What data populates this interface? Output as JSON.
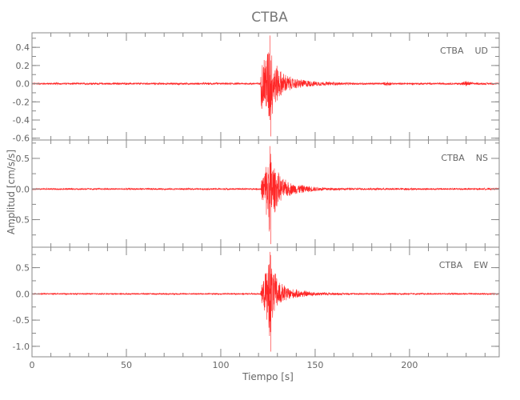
{
  "chart_data": {
    "type": "line",
    "title": "CTBA",
    "xlabel": "Tiempo [s]",
    "ylabel": "Amplitud [cm/s/s]",
    "xlim": [
      0,
      247.5
    ],
    "x_ticks": [
      "0",
      "50",
      "100",
      "150",
      "200"
    ],
    "x_tick_values": [
      0,
      50,
      100,
      150,
      200
    ],
    "line_color": "#ff0000",
    "axis_color": "#888888",
    "grid": false,
    "panels": [
      {
        "label": "CTBA    UD",
        "ylim": [
          -0.62,
          0.56
        ],
        "y_ticks": [
          "0.4",
          "0.2",
          "0.0",
          "-0.2",
          "-0.4",
          "-0.6"
        ],
        "y_tick_values": [
          0.4,
          0.2,
          0.0,
          -0.2,
          -0.4,
          -0.6
        ],
        "envelope": [
          [
            0,
            0.012
          ],
          [
            121,
            0.012
          ],
          [
            121.5,
            0.3
          ],
          [
            124,
            0.4
          ],
          [
            126,
            0.55
          ],
          [
            128,
            0.3
          ],
          [
            132,
            0.15
          ],
          [
            138,
            0.07
          ],
          [
            150,
            0.03
          ],
          [
            165,
            0.015
          ],
          [
            186,
            0.012
          ],
          [
            188,
            0.03
          ],
          [
            191,
            0.012
          ],
          [
            227,
            0.012
          ],
          [
            230,
            0.035
          ],
          [
            234,
            0.012
          ],
          [
            247.5,
            0.012
          ]
        ],
        "peak_max": 0.53,
        "peak_min": -0.58
      },
      {
        "label": "CTBA    NS",
        "ylim": [
          -0.95,
          0.8
        ],
        "y_ticks": [
          "0.5",
          "0.0",
          "-0.5"
        ],
        "y_tick_values": [
          0.5,
          0.0,
          -0.5
        ],
        "envelope": [
          [
            0,
            0.015
          ],
          [
            121,
            0.015
          ],
          [
            121.5,
            0.15
          ],
          [
            124,
            0.45
          ],
          [
            126,
            0.8
          ],
          [
            128,
            0.45
          ],
          [
            132,
            0.2
          ],
          [
            138,
            0.1
          ],
          [
            150,
            0.04
          ],
          [
            165,
            0.02
          ],
          [
            247.5,
            0.015
          ]
        ],
        "peak_max": 0.7,
        "peak_min": -0.9
      },
      {
        "label": "CTBA    EW",
        "ylim": [
          -1.2,
          0.89
        ],
        "y_ticks": [
          "0.5",
          "0.0",
          "-0.5",
          "-1.0"
        ],
        "y_tick_values": [
          0.5,
          0.0,
          -0.5,
          -1.0
        ],
        "envelope": [
          [
            0,
            0.015
          ],
          [
            121,
            0.015
          ],
          [
            121.5,
            0.15
          ],
          [
            124,
            0.5
          ],
          [
            126,
            0.95
          ],
          [
            128,
            0.5
          ],
          [
            132,
            0.22
          ],
          [
            138,
            0.1
          ],
          [
            150,
            0.04
          ],
          [
            165,
            0.02
          ],
          [
            247.5,
            0.015
          ]
        ],
        "peak_max": 0.8,
        "peak_min": -1.1
      }
    ]
  }
}
